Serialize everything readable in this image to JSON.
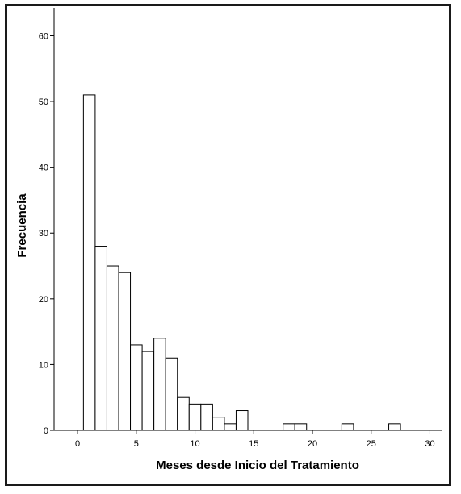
{
  "chart_data": {
    "type": "bar",
    "subtype": "histogram",
    "title": "",
    "xlabel": "Meses desde Inicio del Tratamiento",
    "ylabel": "Frecuencia",
    "xlim": [
      -2,
      31
    ],
    "ylim": [
      0,
      63
    ],
    "bin_width": 1,
    "x_ticks": [
      0,
      5,
      10,
      15,
      20,
      25,
      30
    ],
    "y_ticks": [
      0,
      10,
      20,
      30,
      40,
      50,
      60
    ],
    "grid": false,
    "bar_fill": "#ffffff",
    "bar_stroke": "#000000",
    "bins": [
      {
        "x": 1,
        "count": 51
      },
      {
        "x": 2,
        "count": 28
      },
      {
        "x": 3,
        "count": 25
      },
      {
        "x": 4,
        "count": 24
      },
      {
        "x": 5,
        "count": 13
      },
      {
        "x": 6,
        "count": 12
      },
      {
        "x": 7,
        "count": 14
      },
      {
        "x": 8,
        "count": 11
      },
      {
        "x": 9,
        "count": 5
      },
      {
        "x": 10,
        "count": 4
      },
      {
        "x": 11,
        "count": 4
      },
      {
        "x": 12,
        "count": 2
      },
      {
        "x": 13,
        "count": 1
      },
      {
        "x": 14,
        "count": 3
      },
      {
        "x": 18,
        "count": 1
      },
      {
        "x": 19,
        "count": 1
      },
      {
        "x": 23,
        "count": 1
      },
      {
        "x": 27,
        "count": 1
      }
    ]
  }
}
